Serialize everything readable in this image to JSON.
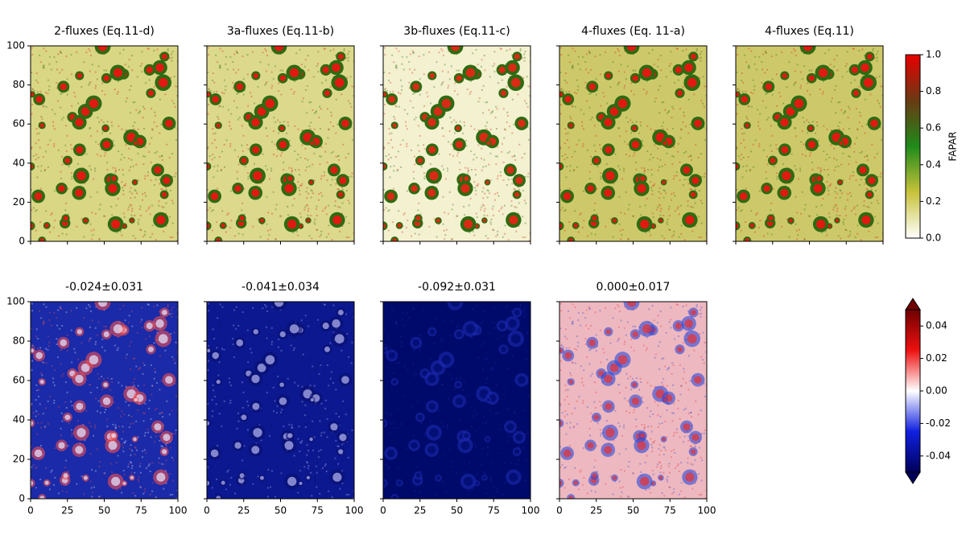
{
  "chart_data": [
    {
      "type": "heatmap",
      "title": "2-fluxes (Eq.11-d)",
      "xlim": [
        0,
        100
      ],
      "ylim": [
        0,
        100
      ],
      "xticks": [
        0,
        25,
        50,
        75,
        100
      ],
      "yticks": [
        0,
        20,
        40,
        60,
        80,
        100
      ],
      "x_tick_labels": false,
      "y_tick_labels": true,
      "row": 0,
      "col": 0,
      "colors": {
        "background": "#d9d684",
        "blob": "#2f6a12",
        "core": "#e01a10"
      }
    },
    {
      "type": "heatmap",
      "title": "3a-fluxes (Eq.11-b)",
      "xlim": [
        0,
        100
      ],
      "ylim": [
        0,
        100
      ],
      "xticks": [
        0,
        25,
        50,
        75,
        100
      ],
      "yticks": [
        0,
        20,
        40,
        60,
        80,
        100
      ],
      "x_tick_labels": false,
      "y_tick_labels": false,
      "row": 0,
      "col": 1,
      "colors": {
        "background": "#dcd98c",
        "blob": "#2f6a12",
        "core": "#e01a10"
      }
    },
    {
      "type": "heatmap",
      "title": "3b-fluxes (Eq.11-c)",
      "xlim": [
        0,
        100
      ],
      "ylim": [
        0,
        100
      ],
      "xticks": [
        0,
        25,
        50,
        75,
        100
      ],
      "yticks": [
        0,
        20,
        40,
        60,
        80,
        100
      ],
      "x_tick_labels": false,
      "y_tick_labels": false,
      "row": 0,
      "col": 2,
      "colors": {
        "background": "#f3f1cf",
        "blob": "#2f6a12",
        "core": "#d82a14"
      }
    },
    {
      "type": "heatmap",
      "title": "4-fluxes (Eq. 11-a)",
      "xlim": [
        0,
        100
      ],
      "ylim": [
        0,
        100
      ],
      "xticks": [
        0,
        25,
        50,
        75,
        100
      ],
      "yticks": [
        0,
        20,
        40,
        60,
        80,
        100
      ],
      "x_tick_labels": false,
      "y_tick_labels": false,
      "row": 0,
      "col": 3,
      "colors": {
        "background": "#cdc96a",
        "blob": "#2f6a12",
        "core": "#e01a10"
      }
    },
    {
      "type": "heatmap",
      "title": "4-fluxes (Eq.11)",
      "xlim": [
        0,
        100
      ],
      "ylim": [
        0,
        100
      ],
      "xticks": [
        0,
        25,
        50,
        75,
        100
      ],
      "yticks": [
        0,
        20,
        40,
        60,
        80,
        100
      ],
      "x_tick_labels": false,
      "y_tick_labels": false,
      "row": 0,
      "col": 4,
      "colors": {
        "background": "#cdc96a",
        "blob": "#2f6a12",
        "core": "#e01a10"
      }
    },
    {
      "type": "heatmap",
      "title": "-0.024±0.031",
      "xlim": [
        0,
        100
      ],
      "ylim": [
        0,
        100
      ],
      "xticks": [
        0,
        25,
        50,
        75,
        100
      ],
      "yticks": [
        0,
        20,
        40,
        60,
        80,
        100
      ],
      "x_tick_labels": true,
      "y_tick_labels": true,
      "row": 1,
      "col": 0,
      "colors": {
        "background": "#1a2aa8",
        "blob": "#f05050",
        "core": "#e8e8ff"
      }
    },
    {
      "type": "heatmap",
      "title": "-0.041±0.034",
      "xlim": [
        0,
        100
      ],
      "ylim": [
        0,
        100
      ],
      "xticks": [
        0,
        25,
        50,
        75,
        100
      ],
      "yticks": [
        0,
        20,
        40,
        60,
        80,
        100
      ],
      "x_tick_labels": true,
      "y_tick_labels": false,
      "row": 1,
      "col": 1,
      "colors": {
        "background": "#0c1890",
        "blob": "#0a1070",
        "core": "#b8b8f0"
      }
    },
    {
      "type": "heatmap",
      "title": "-0.092±0.031",
      "xlim": [
        0,
        100
      ],
      "ylim": [
        0,
        100
      ],
      "xticks": [
        0,
        25,
        50,
        75,
        100
      ],
      "yticks": [
        0,
        20,
        40,
        60,
        80,
        100
      ],
      "x_tick_labels": true,
      "y_tick_labels": false,
      "row": 1,
      "col": 2,
      "colors": {
        "background": "#000a6a",
        "blob": "#1a2ab0",
        "core": "#000a6a"
      }
    },
    {
      "type": "heatmap",
      "title": "0.000±0.017",
      "xlim": [
        0,
        100
      ],
      "ylim": [
        0,
        100
      ],
      "xticks": [
        0,
        25,
        50,
        75,
        100
      ],
      "yticks": [
        0,
        20,
        40,
        60,
        80,
        100
      ],
      "x_tick_labels": true,
      "y_tick_labels": false,
      "row": 1,
      "col": 3,
      "colors": {
        "background": "#eeb8c0",
        "blob": "#2a48d8",
        "core": "#e83030"
      }
    }
  ],
  "colorbars": [
    {
      "label": "FAPAR",
      "lim": [
        0,
        1
      ],
      "ticks": [
        {
          "value": 0,
          "label": "0.0"
        },
        0.2,
        0.4,
        0.6,
        0.8,
        {
          "value": 1,
          "label": "1.0"
        }
      ],
      "colormap": [
        "#ffffff",
        "#c8c23a",
        "#1f8a1a",
        "#6a3a14",
        "#e80000"
      ],
      "extend": false,
      "row": 0
    },
    {
      "lim": [
        -0.05,
        0.05
      ],
      "ticks": [
        -0.04,
        -0.02,
        {
          "value": 0,
          "label": "0.00"
        },
        0.02,
        0.04
      ],
      "colormap": [
        "#00005a",
        "#1020e0",
        "#ffffff",
        "#ee1010",
        "#700000"
      ],
      "extend": true,
      "row": 1
    }
  ]
}
